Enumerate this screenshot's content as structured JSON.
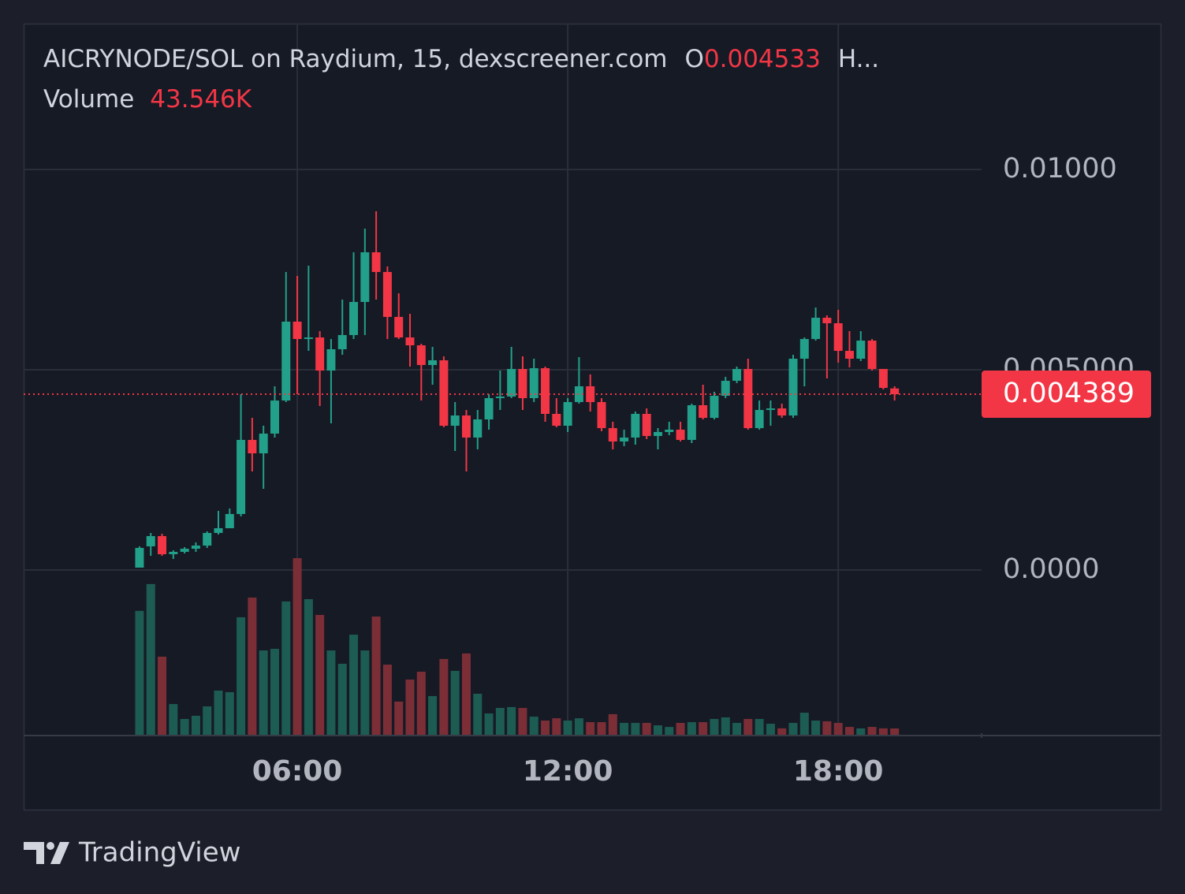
{
  "chart_data": {
    "type": "candlestick",
    "title": "AICRYNODE/SOL on Raydium, 15, dexscreener.com",
    "open_label": "O",
    "high_label": "H...",
    "volume_title": "Volume",
    "volume_value_label": "43.546K",
    "up_color": "#22a08a",
    "down_color": "#f23645",
    "up_volume_color": "#1d5c52",
    "down_volume_color": "#7c2e37",
    "grid": true,
    "xlim": [
      -0.07,
      21.18
    ],
    "xticks": [
      {
        "value": 6,
        "label": "06:00"
      },
      {
        "value": 12,
        "label": "12:00"
      },
      {
        "value": 18,
        "label": "18:00"
      }
    ],
    "ylim": [
      -0.004114,
      0.013642
    ],
    "yticks": [
      {
        "value": 0.01,
        "label": "0.01000"
      },
      {
        "value": 0.005,
        "label": "0.005000"
      },
      {
        "value": 0,
        "label": "0.0000"
      }
    ],
    "x": [
      2.5,
      2.75,
      3,
      3.25,
      3.5,
      3.75,
      4,
      4.25,
      4.5,
      4.75,
      5,
      5.25,
      5.5,
      5.75,
      6,
      6.25,
      6.5,
      6.75,
      7,
      7.25,
      7.5,
      7.75,
      8,
      8.25,
      8.5,
      8.75,
      9,
      9.25,
      9.5,
      9.75,
      10,
      10.25,
      10.5,
      10.75,
      11,
      11.25,
      11.5,
      11.75,
      12,
      12.25,
      12.5,
      12.75,
      13,
      13.25,
      13.5,
      13.75,
      14,
      14.25,
      14.5,
      14.75,
      15,
      15.25,
      15.5,
      15.75,
      16,
      16.25,
      16.5,
      16.75,
      17,
      17.25,
      17.5,
      17.75,
      18,
      18.25,
      18.5,
      18.75,
      19,
      19.25
    ],
    "open": [
      5.9e-05,
      0.000591,
      0.000846,
      0.000394,
      0.000453,
      0.000531,
      0.00061,
      0.000925,
      0.001043,
      0.001398,
      0.003248,
      0.002913,
      0.003406,
      0.004232,
      0.006201,
      0.005768,
      0.005807,
      0.00498,
      0.005512,
      0.005866,
      0.006693,
      0.007933,
      0.007441,
      0.006319,
      0.005807,
      0.00561,
      0.005118,
      0.005236,
      0.003602,
      0.003858,
      0.003307,
      0.00376,
      0.004291,
      0.004331,
      0.00502,
      0.004291,
      0.005039,
      0.003898,
      0.003602,
      0.004193,
      0.004587,
      0.004193,
      0.003543,
      0.003209,
      0.003307,
      0.003898,
      0.003346,
      0.003445,
      0.003504,
      0.003248,
      0.004114,
      0.003799,
      0.00435,
      0.004724,
      0.00502,
      0.003543,
      0.003996,
      0.004035,
      0.003858,
      0.005276,
      0.005768,
      0.006299,
      0.006161,
      0.005472,
      0.005276,
      0.005728,
      0.00502,
      0.004533
    ],
    "high": [
      0.000591,
      0.000925,
      0.000906,
      0.000492,
      0.000571,
      0.000689,
      0.000965,
      0.001476,
      0.001535,
      0.00439,
      0.003799,
      0.003602,
      0.004587,
      0.007441,
      0.007343,
      0.007598,
      0.005965,
      0.005768,
      0.006752,
      0.007933,
      0.008524,
      0.008957,
      0.007579,
      0.006909,
      0.006398,
      0.00565,
      0.005571,
      0.005335,
      0.004193,
      0.003996,
      0.003996,
      0.00439,
      0.00498,
      0.005571,
      0.005335,
      0.005276,
      0.005079,
      0.004291,
      0.004291,
      0.005315,
      0.004882,
      0.004291,
      0.003701,
      0.003504,
      0.003957,
      0.004035,
      0.003543,
      0.003701,
      0.003701,
      0.004154,
      0.004626,
      0.004449,
      0.004823,
      0.005079,
      0.005276,
      0.004232,
      0.004232,
      0.004154,
      0.005374,
      0.005807,
      0.006555,
      0.006358,
      0.006496,
      0.005965,
      0.005965,
      0.005768,
      0.00502,
      0.004587
    ],
    "low": [
      5.9e-05,
      0.000354,
      0.000354,
      0.000276,
      0.000413,
      0.000453,
      0.000551,
      0.000886,
      0.001043,
      0.001339,
      0.002461,
      0.002028,
      0.003307,
      0.004193,
      0.00439,
      0.005472,
      0.004094,
      0.003661,
      0.005374,
      0.005768,
      0.005866,
      0.006752,
      0.005768,
      0.005768,
      0.005079,
      0.004232,
      0.004626,
      0.003563,
      0.002972,
      0.002461,
      0.003012,
      0.003504,
      0.003996,
      0.004291,
      0.003996,
      0.004193,
      0.003701,
      0.003563,
      0.003445,
      0.004154,
      0.003957,
      0.003465,
      0.003012,
      0.003091,
      0.00313,
      0.003268,
      0.003012,
      0.003366,
      0.003209,
      0.003169,
      0.00376,
      0.00376,
      0.004291,
      0.004665,
      0.003504,
      0.003504,
      0.003602,
      0.003799,
      0.003799,
      0.004587,
      0.005728,
      0.004783,
      0.005177,
      0.005059,
      0.005217,
      0.00498,
      0.004508,
      0.004232
    ],
    "close": [
      0.000551,
      0.000846,
      0.000394,
      0.000453,
      0.000531,
      0.00061,
      0.000925,
      0.001043,
      0.001398,
      0.003248,
      0.002913,
      0.003406,
      0.004232,
      0.006201,
      0.005768,
      0.005807,
      0.00498,
      0.005512,
      0.005866,
      0.006693,
      0.007933,
      0.007441,
      0.006319,
      0.005807,
      0.00561,
      0.005118,
      0.005236,
      0.003602,
      0.003858,
      0.003307,
      0.00376,
      0.004291,
      0.004331,
      0.00502,
      0.004291,
      0.005039,
      0.003898,
      0.003602,
      0.004193,
      0.004587,
      0.004193,
      0.003543,
      0.003209,
      0.003307,
      0.003898,
      0.003346,
      0.003445,
      0.003504,
      0.003248,
      0.004114,
      0.003799,
      0.00435,
      0.004724,
      0.00502,
      0.003543,
      0.003996,
      0.004035,
      0.003858,
      0.005276,
      0.005768,
      0.006299,
      0.006161,
      0.005472,
      0.005276,
      0.005728,
      0.00502,
      0.004547,
      0.004389
    ],
    "volume": [
      855000,
      1040000,
      539000,
      212000,
      109000,
      131000,
      196000,
      305000,
      294000,
      811000,
      947000,
      582000,
      593000,
      920000,
      1219000,
      936000,
      827000,
      582000,
      490000,
      691000,
      582000,
      816000,
      484000,
      229000,
      381000,
      435000,
      267000,
      523000,
      441000,
      561000,
      283000,
      147000,
      185000,
      191000,
      185000,
      125000,
      98000,
      114000,
      98000,
      114000,
      87000,
      87000,
      142000,
      82000,
      82000,
      82000,
      65000,
      54000,
      82000,
      87000,
      87000,
      109000,
      120000,
      82000,
      109000,
      109000,
      76000,
      44000,
      82000,
      152000,
      98000,
      93000,
      82000,
      54000,
      44000,
      54000,
      44000,
      43546
    ]
  },
  "branding": "TradingView"
}
